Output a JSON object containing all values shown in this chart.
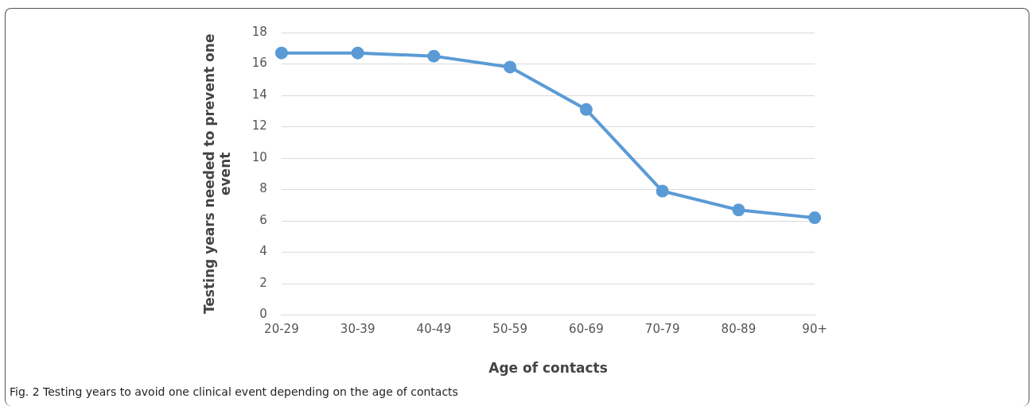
{
  "chart_data": {
    "type": "line",
    "xlabel": "Age of contacts",
    "ylabel": "Testing years needed to prevent one event",
    "categories": [
      "20-29",
      "30-39",
      "40-49",
      "50-59",
      "60-69",
      "70-79",
      "80-89",
      "90+"
    ],
    "series": [
      {
        "color": "#5b9bd5",
        "values": [
          16.7,
          16.7,
          16.5,
          15.8,
          13.1,
          7.9,
          6.7,
          6.2
        ]
      }
    ],
    "ylim": [
      0,
      18
    ],
    "yticks": [
      0,
      2,
      4,
      6,
      8,
      10,
      12,
      14,
      16,
      18
    ],
    "grid": "y",
    "legend": false,
    "marker": "circle",
    "line_style": "solid",
    "annotations": [
      "Fig. 2  Testing years to avoid one clinical event depending on the age of contacts"
    ]
  }
}
